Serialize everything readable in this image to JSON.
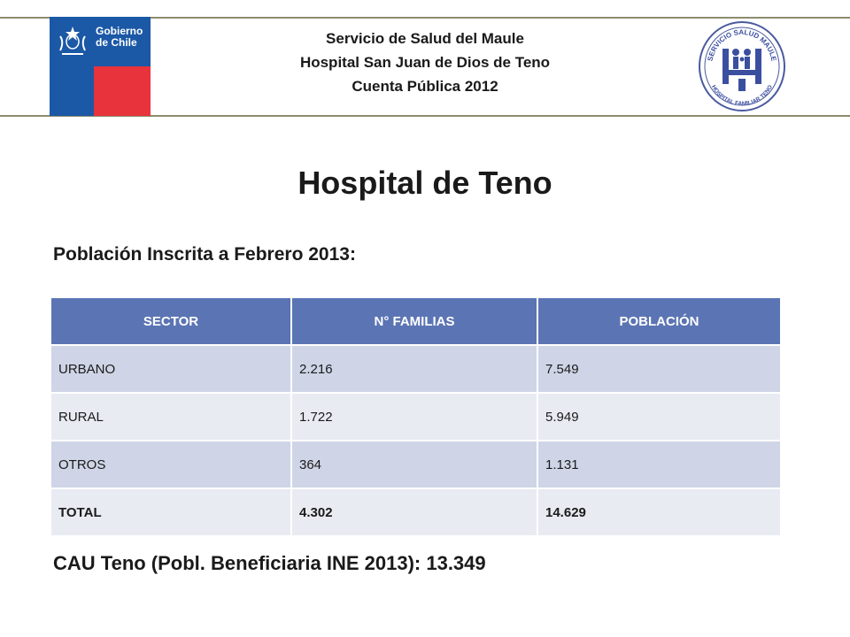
{
  "header": {
    "lines": [
      "Servicio de Salud del Maule",
      "Hospital San Juan de Dios de Teno",
      "Cuenta Pública 2012"
    ],
    "left_logo": {
      "line1": "Gobierno",
      "line2": "de Chile",
      "colors": {
        "blue": "#1b58a6",
        "red": "#e8323c"
      }
    },
    "right_logo": {
      "top_text": "SERVICIO SALUD MAULE",
      "bottom_text": "HOSPITAL FAMILIAR TENO",
      "color": "#3b4fa0"
    }
  },
  "title": "Hospital de Teno",
  "subtitle": "Población Inscrita a Febrero 2013:",
  "table": {
    "headers": [
      "SECTOR",
      "N° FAMILIAS",
      "POBLACIÓN"
    ],
    "rows": [
      [
        "URBANO",
        "2.216",
        "7.549"
      ],
      [
        "RURAL",
        "1.722",
        "5.949"
      ],
      [
        "OTROS",
        "364",
        "1.131"
      ],
      [
        "TOTAL",
        "4.302",
        "14.629"
      ]
    ],
    "colors": {
      "header": "#5b74b4",
      "row_dark": "#cfd5e6",
      "row_light": "#e8ebf2"
    }
  },
  "footer_note": "CAU Teno (Pobl. Beneficiaria INE 2013): 13.349"
}
